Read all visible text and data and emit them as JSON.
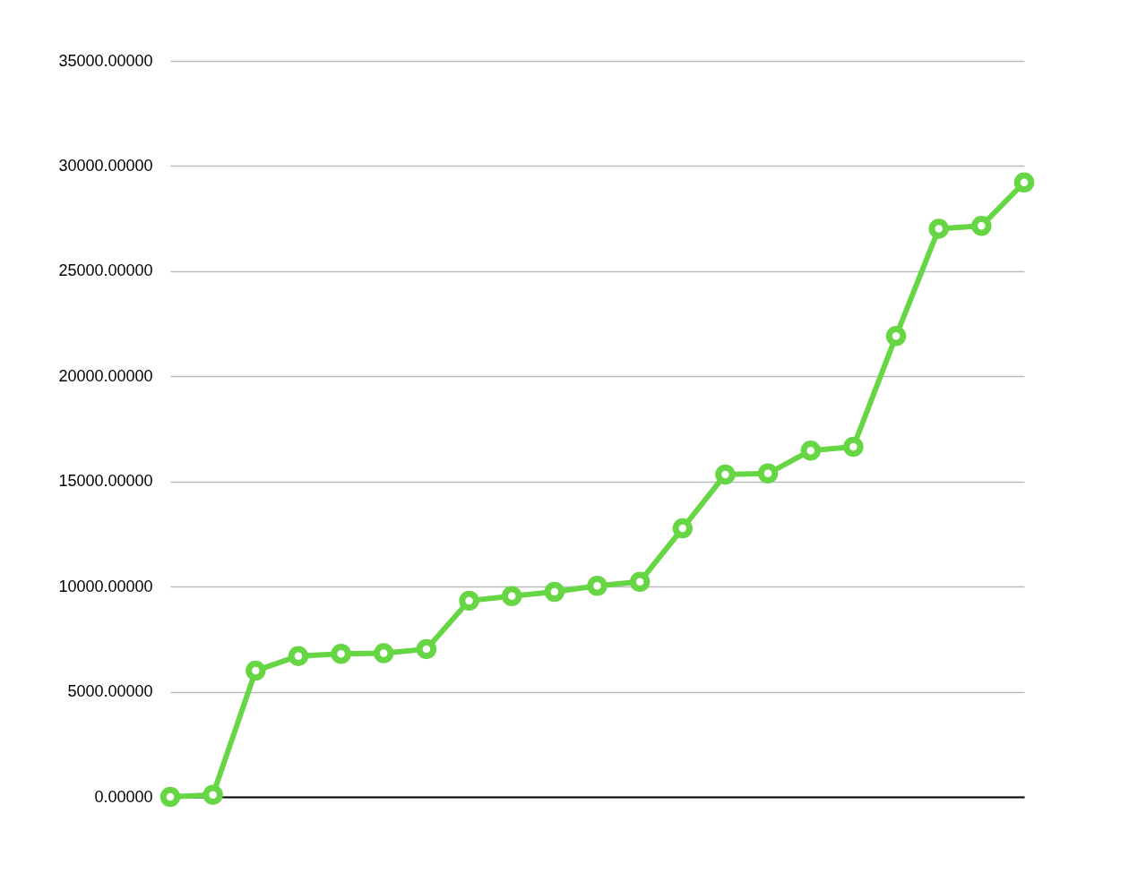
{
  "chart_data": {
    "type": "line",
    "categories": [
      null,
      null,
      null,
      null,
      null,
      null,
      null,
      null,
      null,
      null,
      null,
      null,
      null,
      null,
      null,
      null,
      null,
      null,
      null,
      null,
      null
    ],
    "series": [
      {
        "color": "#66d644",
        "values": [
          0,
          100,
          6000,
          6700,
          6800,
          6830,
          7030,
          9330,
          9550,
          9750,
          10040,
          10230,
          12770,
          15330,
          15380,
          16470,
          16650,
          21920,
          27020,
          27150,
          29220
        ]
      }
    ],
    "ylim": [
      0,
      35000
    ],
    "yticks": [
      {
        "value": 0,
        "label": "0.00000"
      },
      {
        "value": 5000,
        "label": "5000.00000"
      },
      {
        "value": 10000,
        "label": "10000.00000"
      },
      {
        "value": 15000,
        "label": "15000.00000"
      },
      {
        "value": 20000,
        "label": "20000.00000"
      },
      {
        "value": 25000,
        "label": "25000.00000"
      },
      {
        "value": 30000,
        "label": "30000.00000"
      },
      {
        "value": 35000,
        "label": "35000.00000"
      }
    ],
    "grid": "y",
    "marker": "circle",
    "line_style": "solid",
    "tick_labels": "y"
  }
}
